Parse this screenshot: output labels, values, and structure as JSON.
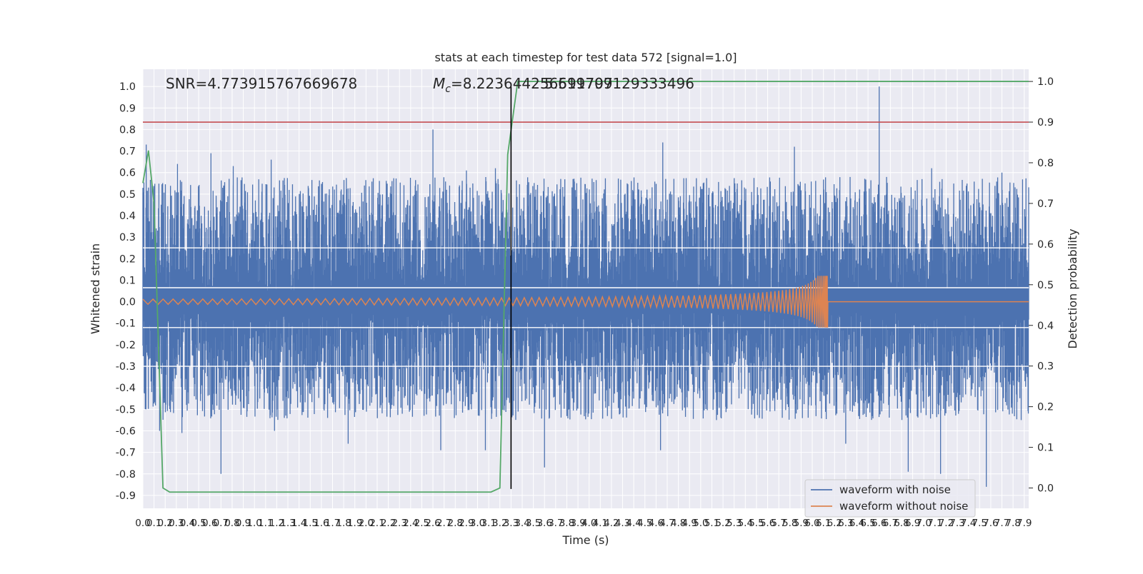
{
  "chart_data": {
    "type": "line",
    "title": "stats at each timestep for test data 572 [signal=1.0]",
    "xlabel": "Time (s)",
    "ylabel": "Whitened strain",
    "y2label": "Detection probability",
    "xlim": [
      0.0,
      7.94
    ],
    "ylim": [
      -0.96,
      1.08
    ],
    "y2lim": [
      -0.05,
      1.03
    ],
    "grid": true,
    "xticks": [
      "0.0",
      "0.1",
      "0.2",
      "0.3",
      "0.4",
      "0.5",
      "0.6",
      "0.7",
      "0.8",
      "0.9",
      "1.0",
      "1.1",
      "1.2",
      "1.3",
      "1.4",
      "1.5",
      "1.6",
      "1.7",
      "1.8",
      "1.9",
      "2.0",
      "2.1",
      "2.2",
      "2.3",
      "2.4",
      "2.5",
      "2.6",
      "2.7",
      "2.8",
      "2.9",
      "3.0",
      "3.1",
      "3.2",
      "3.3",
      "3.4",
      "3.5",
      "3.6",
      "3.7",
      "3.8",
      "3.9",
      "4.0",
      "4.1",
      "4.2",
      "4.3",
      "4.4",
      "4.5",
      "4.6",
      "4.7",
      "4.8",
      "4.9",
      "5.0",
      "5.1",
      "5.2",
      "5.3",
      "5.4",
      "5.5",
      "5.6",
      "5.7",
      "5.8",
      "5.9",
      "6.0",
      "6.1",
      "6.2",
      "6.3",
      "6.4",
      "6.5",
      "6.6",
      "6.7",
      "6.8",
      "6.9",
      "7.0",
      "7.1",
      "7.2",
      "7.3",
      "7.4",
      "7.5",
      "7.6",
      "7.7",
      "7.8",
      "7.9"
    ],
    "yticks": [
      "1.0",
      "0.9",
      "0.8",
      "0.7",
      "0.6",
      "0.5",
      "0.4",
      "0.3",
      "0.2",
      "0.1",
      "0.0",
      "-0.1",
      "-0.2",
      "-0.3",
      "-0.4",
      "-0.5",
      "-0.6",
      "-0.7",
      "-0.8",
      "-0.9"
    ],
    "y2ticks": [
      "1.0",
      "0.9",
      "0.8",
      "0.7",
      "0.6",
      "0.5",
      "0.4",
      "0.3",
      "0.2",
      "0.1",
      "0.0"
    ],
    "annotations": {
      "snr": "SNR=4.773915767669678",
      "mc_symbol": "M",
      "mc_sub": "c",
      "mc_value": "=8.223644256591797",
      "overlap": "5.619709129333496"
    },
    "series": [
      {
        "name": "waveform with noise",
        "color": "#4c72b0",
        "axis": "left",
        "noise_range": [
          -0.55,
          0.58
        ],
        "spikes": [
          [
            0.03,
            0.73
          ],
          [
            0.05,
            0.53
          ],
          [
            0.31,
            0.64
          ],
          [
            0.61,
            0.69
          ],
          [
            0.81,
            0.63
          ],
          [
            1.15,
            0.66
          ],
          [
            2.6,
            0.8
          ],
          [
            2.9,
            0.61
          ],
          [
            3.16,
            0.62
          ],
          [
            4.66,
            0.74
          ],
          [
            5.84,
            0.72
          ],
          [
            6.6,
            1.0
          ],
          [
            7.07,
            0.62
          ],
          [
            7.7,
            0.6
          ],
          [
            0.15,
            -0.6
          ],
          [
            0.35,
            -0.61
          ],
          [
            0.7,
            -0.8
          ],
          [
            1.18,
            -0.6
          ],
          [
            1.84,
            -0.66
          ],
          [
            2.67,
            -0.69
          ],
          [
            3.07,
            -0.69
          ],
          [
            3.6,
            -0.77
          ],
          [
            4.64,
            -0.69
          ],
          [
            6.3,
            -0.66
          ],
          [
            6.86,
            -0.79
          ],
          [
            7.15,
            -0.8
          ],
          [
            7.56,
            -0.86
          ]
        ]
      },
      {
        "name": "waveform without noise",
        "color": "#dd8452",
        "axis": "left",
        "merger_time": 6.14,
        "start_amplitude": 0.012,
        "peak_amplitude": 0.12
      },
      {
        "name": "",
        "color": "#55a868",
        "axis": "right",
        "x": [
          0.0,
          0.05,
          0.1,
          0.18,
          0.24,
          3.12,
          3.2,
          3.27,
          3.36
        ],
        "values": [
          0.75,
          0.83,
          0.7,
          0.0,
          -0.01,
          -0.01,
          0.0,
          0.82,
          1.0
        ],
        "end_value": 1.0
      },
      {
        "name": "",
        "color": "#c44e52",
        "axis": "right",
        "value": 0.9
      }
    ],
    "hlines_left": [
      0.25,
      0.065,
      -0.12,
      -0.3
    ],
    "vline": {
      "x": 3.3,
      "ymin": -0.87,
      "ymax": 1.0,
      "color": "#000000"
    },
    "legend": {
      "position": "bottom-right",
      "entries": [
        "waveform with noise",
        "waveform without noise"
      ]
    }
  }
}
